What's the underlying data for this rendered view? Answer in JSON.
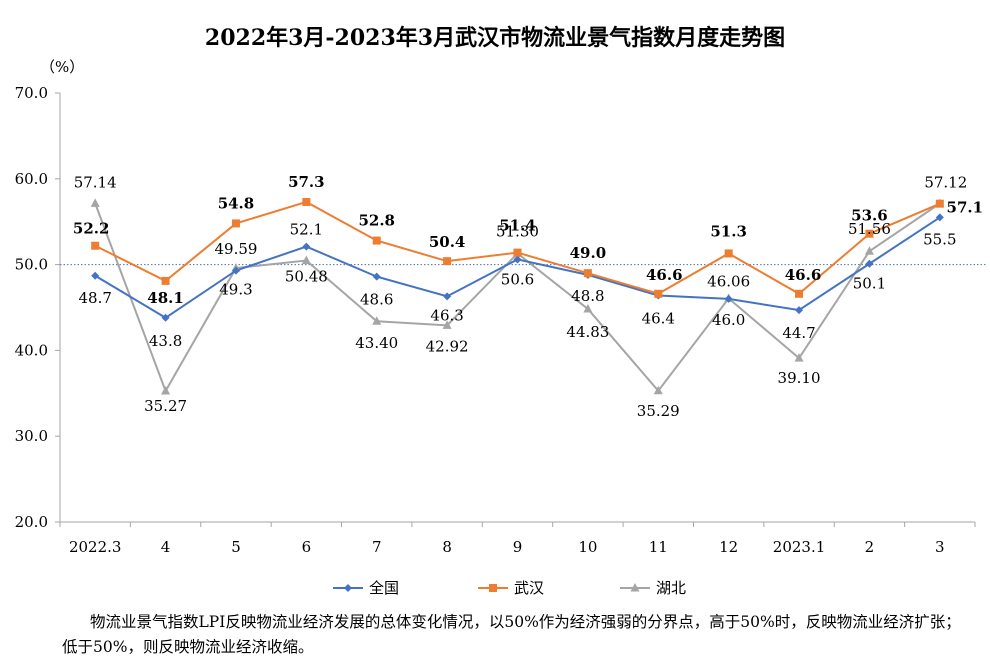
{
  "chart_data": {
    "type": "line",
    "title": "2022年3月-2023年3月武汉市物流业景气指数月度走势图",
    "unit": "（%）",
    "categories": [
      "2022.3",
      "4",
      "5",
      "6",
      "7",
      "8",
      "9",
      "10",
      "11",
      "12",
      "2023.1",
      "2",
      "3"
    ],
    "ylim": [
      20,
      70
    ],
    "yticks": [
      "20.0",
      "30.0",
      "40.0",
      "50.0",
      "60.0",
      "70.0"
    ],
    "reference_line": 50,
    "legend_position": "bottom",
    "series": [
      {
        "name": "全国",
        "color": "#4472c4",
        "marker": "diamond",
        "values": [
          48.7,
          43.8,
          49.3,
          52.1,
          48.6,
          46.3,
          50.6,
          48.8,
          46.4,
          46.0,
          44.7,
          50.1,
          55.5
        ],
        "labels": [
          "48.7",
          "43.8",
          "49.3",
          "52.1",
          "48.6",
          "46.3",
          "50.6",
          "48.8",
          "46.4",
          "46.0",
          "44.7",
          "50.1",
          "55.5"
        ]
      },
      {
        "name": "武汉",
        "color": "#ed7d31",
        "marker": "square",
        "values": [
          52.2,
          48.1,
          54.8,
          57.3,
          52.8,
          50.4,
          51.4,
          49.0,
          46.6,
          51.3,
          46.6,
          53.6,
          57.1
        ],
        "labels": [
          "52.2",
          "48.1",
          "54.8",
          "57.3",
          "52.8",
          "50.4",
          "51.4",
          "49.0",
          "46.6",
          "51.3",
          "46.6",
          "53.6",
          "57.1"
        ]
      },
      {
        "name": "湖北",
        "color": "#a5a5a5",
        "marker": "triangle",
        "values": [
          57.14,
          35.27,
          49.59,
          50.48,
          43.4,
          42.92,
          51.3,
          44.83,
          35.29,
          46.06,
          39.1,
          51.56,
          57.12
        ],
        "labels": [
          "57.14",
          "35.27",
          "49.59",
          "50.48",
          "43.40",
          "42.92",
          "51.30",
          "44.83",
          "35.29",
          "46.06",
          "39.10",
          "51.56",
          "57.12"
        ]
      }
    ]
  },
  "note": "物流业景气指数LPI反映物流业经济发展的总体变化情况，以50%作为经济强弱的分界点，高于50%时，反映物流业经济扩张；低于50%，则反映物流业经济收缩。"
}
